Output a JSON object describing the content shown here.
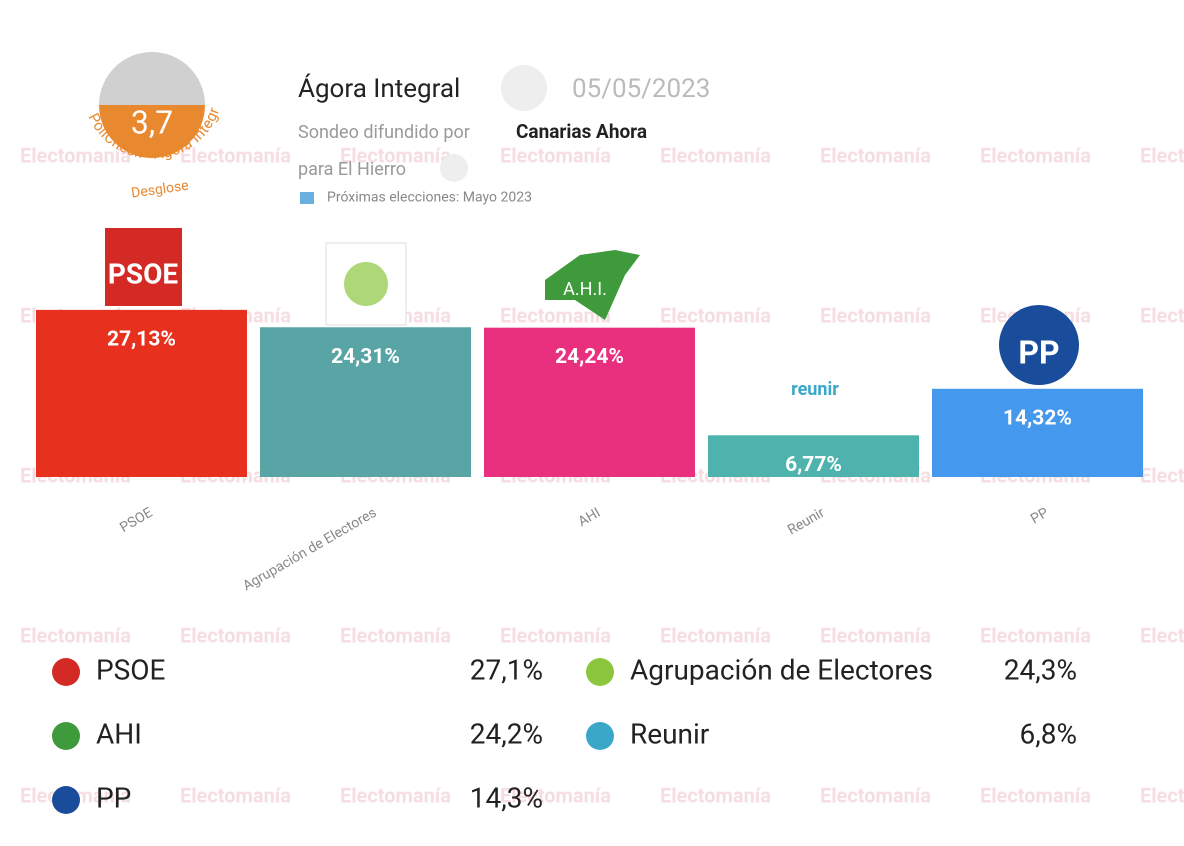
{
  "chart_data": {
    "type": "bar",
    "categories": [
      "PSOE",
      "Agrupación de Electores",
      "AHI",
      "Reunir",
      "PP"
    ],
    "values": [
      27.13,
      24.31,
      24.24,
      6.77,
      14.32
    ],
    "value_labels": [
      "27,13%",
      "24,31%",
      "24,24%",
      "6,77%",
      "14,32%"
    ],
    "colors": [
      "#e8301f",
      "#59a5a5",
      "#e8307f",
      "#4db3ac",
      "#4499ee"
    ],
    "logo_texts": [
      "PSOE",
      "A.H.I.",
      "PP",
      "reunir"
    ]
  },
  "header": {
    "score": "3,7",
    "ring_text": "PollCheck - Ágora Integral",
    "breakdown": "Desglose",
    "pollster": "Ágora Integral",
    "date": "05/05/2023",
    "spread_by": "Sondeo difundido por",
    "media": "Canarias Ahora",
    "region": "para El Hierro",
    "next": "Próximas elecciones: Mayo 2023"
  },
  "watermark": "Electomanía",
  "legend": {
    "items": [
      {
        "name": "PSOE",
        "value": "27,1%"
      },
      {
        "name": "Agrupación de Electores",
        "value": "24,3%"
      },
      {
        "name": "AHI",
        "value": "24,2%"
      },
      {
        "name": "Reunir",
        "value": "6,8%"
      },
      {
        "name": "PP",
        "value": "14,3%"
      }
    ]
  }
}
